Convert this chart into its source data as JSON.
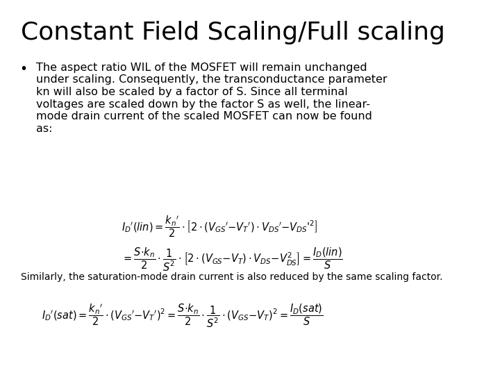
{
  "title": "Constant Field Scaling/Full scaling",
  "bullet_text": "The aspect ratio WIL of the MOSFET will remain unchanged\nunder scaling. Consequently, the transconductance parameter\nkn will also be scaled by a factor of S. Since all terminal\nvoltages are scaled down by the factor S as well, the linear-\nmode drain current of the scaled MOSFET can now be found\nas:",
  "eq1": "$I_D{'}(lin) = \\dfrac{k_n{'}}{2} \\cdot \\left[2 \\cdot (V_{GS}{'}{-}V_T{'}) \\cdot V_{DS}{'}{-}V_{DS}{'^2}\\right]$",
  "eq2": "$= \\dfrac{S{\\cdot}k_n}{2} \\cdot \\dfrac{1}{S^2} \\cdot \\left[2 \\cdot (V_{GS}{-}V_T) \\cdot V_{DS}{-}V_{DS}^{2}\\right] = \\dfrac{I_D(lin)}{S}$",
  "similarly_text": "Similarly, the saturation-mode drain current is also reduced by the same scaling factor.",
  "eq3": "$I_D{'}(sat) = \\dfrac{k_n{'}}{2} \\cdot (V_{GS}{'}{-}V_T{'})^2 = \\dfrac{S{\\cdot}k_n}{2} \\cdot \\dfrac{1}{S^2} \\cdot (V_{GS}{-}V_T)^2 = \\dfrac{I_D(sat)}{S}$",
  "bg_color": "#ffffff",
  "text_color": "#000000",
  "title_fontsize": 26,
  "body_fontsize": 11.5,
  "eq_fontsize": 10.5,
  "similarly_fontsize": 10
}
